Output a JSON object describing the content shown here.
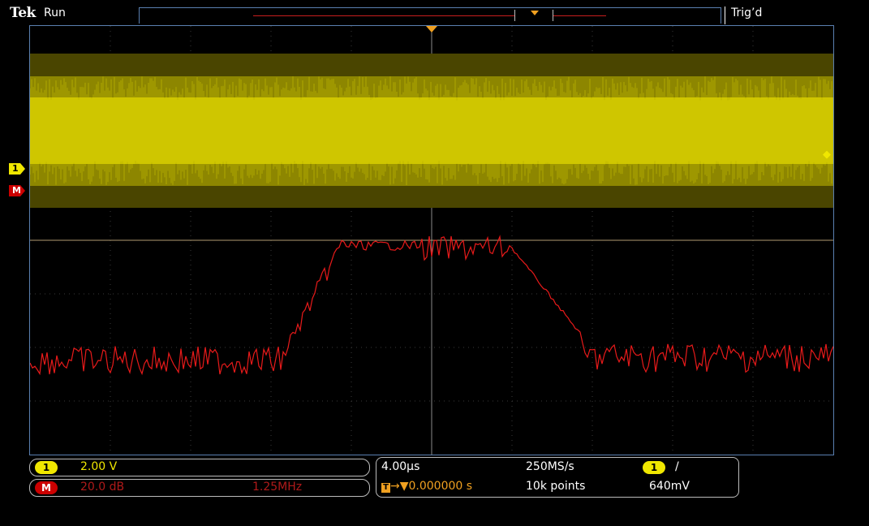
{
  "header": {
    "brand": "Tek",
    "run_state": "Run",
    "trigger_state": "Trig’d"
  },
  "markers": {
    "channel1": "1",
    "math": "M"
  },
  "readouts": {
    "ch1": {
      "label": "1",
      "scale": "2.00 V"
    },
    "math": {
      "label": "M",
      "scale": "20.0 dB",
      "span": "1.25MHz"
    },
    "horizontal": {
      "time_div": "4.00µs",
      "sample_rate": "250MS/s",
      "trigger_icon": "T",
      "delay": "→▼0.000000 s",
      "record_length": "10k points"
    },
    "trigger": {
      "source": "1",
      "slope": "/",
      "level": "640mV"
    }
  },
  "colors": {
    "ch1": "#f0e700",
    "math": "#e81a1a",
    "trigger": "#f0a020",
    "graticule": "#5a7fb0"
  }
}
